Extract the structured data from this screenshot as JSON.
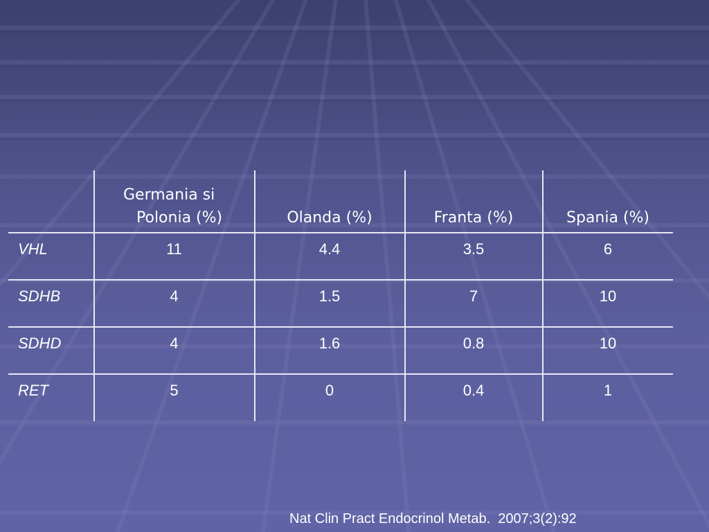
{
  "table": {
    "headers": [
      "",
      [
        "Germania si",
        "Polonia (%)"
      ],
      "Olanda (%)",
      "Franta (%)",
      "Spania (%)"
    ],
    "rows": [
      {
        "label": "VHL",
        "cells": [
          "11",
          "4.4",
          "3.5",
          "6"
        ]
      },
      {
        "label": "SDHB",
        "cells": [
          "4",
          "1.5",
          "7",
          "10"
        ]
      },
      {
        "label": "SDHD",
        "cells": [
          "4",
          "1.6",
          "0.8",
          "10"
        ]
      },
      {
        "label": "RET",
        "cells": [
          "5",
          "0",
          "0.4",
          "1"
        ]
      }
    ]
  },
  "citation": "Nat Clin Pract Endocrinol Metab.  2007;3(2):92",
  "colors": {
    "background": "#5b5e9c",
    "grid": "#e8e8f4",
    "text": "#ffffff"
  }
}
